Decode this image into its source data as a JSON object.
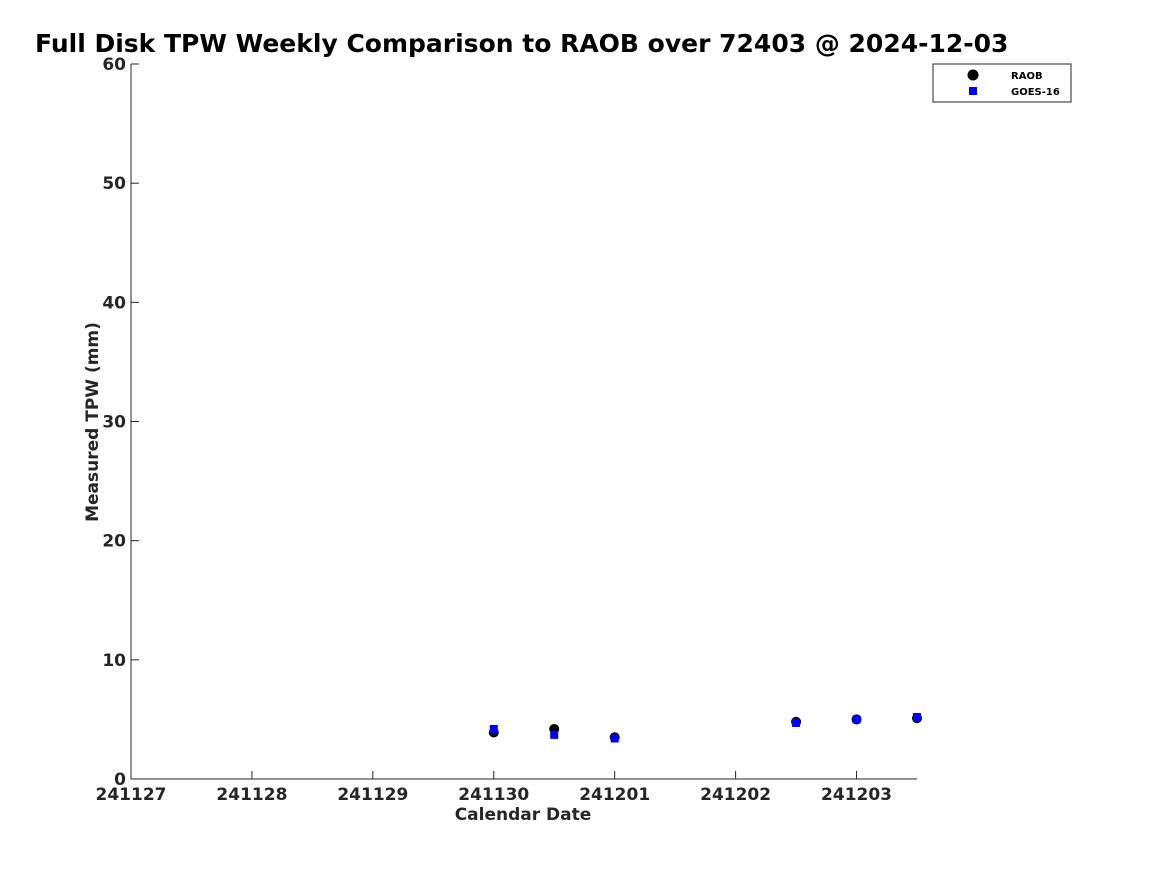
{
  "chart_data": {
    "type": "scatter",
    "title": "Full Disk TPW Weekly Comparison to RAOB over 72403 @ 2024-12-03",
    "xlabel": "Calendar Date",
    "ylabel": "Measured TPW (mm)",
    "x_ticks": [
      "241127",
      "241128",
      "241129",
      "241130",
      "241201",
      "241202",
      "241203"
    ],
    "y_ticks": [
      "0",
      "10",
      "20",
      "30",
      "40",
      "50",
      "60"
    ],
    "xlim": [
      0,
      6.5
    ],
    "ylim": [
      0,
      60
    ],
    "grid": false,
    "legend_position": "top-right",
    "series": [
      {
        "name": "RAOB",
        "marker": "circle",
        "color": "#000000",
        "points": [
          {
            "x": 3.0,
            "y": 3.9
          },
          {
            "x": 3.5,
            "y": 4.2
          },
          {
            "x": 4.0,
            "y": 3.5
          },
          {
            "x": 5.5,
            "y": 4.8
          },
          {
            "x": 6.0,
            "y": 5.0
          },
          {
            "x": 6.5,
            "y": 5.1
          }
        ]
      },
      {
        "name": "GOES-16",
        "marker": "square",
        "color": "#0000ff",
        "points": [
          {
            "x": 3.0,
            "y": 4.2
          },
          {
            "x": 3.5,
            "y": 3.7
          },
          {
            "x": 4.0,
            "y": 3.4
          },
          {
            "x": 5.5,
            "y": 4.7
          },
          {
            "x": 6.0,
            "y": 5.0
          },
          {
            "x": 6.5,
            "y": 5.2
          }
        ]
      }
    ]
  }
}
